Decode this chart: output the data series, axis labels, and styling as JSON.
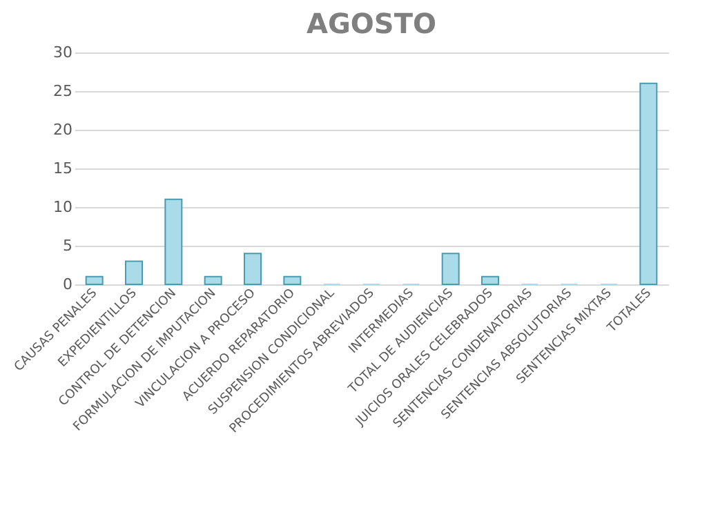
{
  "chart_data": {
    "type": "bar",
    "title": "AGOSTO",
    "categories": [
      "CAUSAS PENALES",
      "EXPEDIENTILLOS",
      "CONTROL DE DETENCION",
      "FORMULACION DE IMPUTACION",
      "VINCULACION A PROCESO",
      "ACUERDO REPARATORIO",
      "SUSPENSION CONDICIONAL",
      "PROCEDIMIENTOS ABREVIADOS",
      "INTERMEDIAS",
      "TOTAL DE AUDIENCIAS",
      "JUICIOS ORALES CELEBRADOS",
      "SENTENCIAS CONDENATORIAS",
      "SENTENCIAS ABSOLUTORIAS",
      "SENTENCIAS MIXTAS",
      "TOTALES"
    ],
    "values": [
      1,
      3,
      11,
      1,
      4,
      1,
      0,
      0,
      0,
      4,
      1,
      0,
      0,
      0,
      26
    ],
    "color": "#a9dbe8",
    "ylim": [
      0,
      30
    ],
    "yticks": [
      0,
      5,
      10,
      15,
      20,
      25,
      30
    ],
    "grid": "y"
  }
}
